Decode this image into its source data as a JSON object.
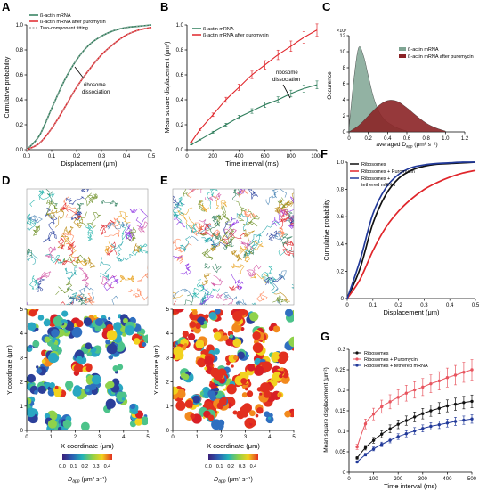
{
  "panels": {
    "A": {
      "letter": "A",
      "ylabel": "Cumulative probability",
      "xlabel": "Displacement (μm)",
      "xticks": [
        "0.0",
        "0.1",
        "0.2",
        "0.3",
        "0.4",
        "0.5"
      ],
      "yticks": [
        "0.0",
        "0.2",
        "0.4",
        "0.6",
        "0.8",
        "1.0"
      ],
      "legend": [
        "ß-actin mRNA",
        "ß-actin mRNA after puromycin",
        "Two-component fitting"
      ],
      "annotation": [
        "ribosome",
        "dissociation"
      ]
    },
    "B": {
      "letter": "B",
      "ylabel": "Mean square displacement (μm²)",
      "xlabel": "Time interval (ms)",
      "xticks": [
        "0",
        "200",
        "400",
        "600",
        "800",
        "1000"
      ],
      "yticks": [
        "0.0",
        "0.2",
        "0.4",
        "0.6",
        "0.8",
        "1.0"
      ],
      "legend": [
        "ß-actin mRNA",
        "ß-actin mRNA after puromycin"
      ],
      "annotation": [
        "ribosome",
        "dissociation"
      ]
    },
    "C": {
      "letter": "C",
      "ylabel": "Occurence",
      "xlabel": "averaged D",
      "xlabel_sub": "app",
      "xlabel_unit": " (μm² s⁻¹)",
      "scale": "×10³",
      "xticks": [
        "0",
        "0.2",
        "0.4",
        "0.6",
        "0.8",
        "1.0",
        "1.2"
      ],
      "yticks": [
        "0",
        "2",
        "4",
        "6",
        "8",
        "10",
        "12"
      ],
      "legend": [
        "ß-actin mRNA",
        "ß-actin mRNA after puromycin"
      ]
    },
    "D": {
      "letter": "D",
      "ylabel": "Y coordinate (μm)",
      "xlabel": "X coordinate (μm)",
      "ticks": [
        "0",
        "1",
        "2",
        "3",
        "4",
        "5"
      ],
      "cbar_ticks": [
        "0.0",
        "0.1",
        "0.2",
        "0.3",
        "0.4"
      ],
      "cbar_label": "D",
      "cbar_sub": "app",
      "cbar_unit": " (μm² s⁻¹)"
    },
    "E": {
      "letter": "E",
      "ylabel": "Y coordinate (μm)",
      "xlabel": "X coordinate (μm)",
      "ticks": [
        "0",
        "1",
        "2",
        "3",
        "4",
        "5"
      ],
      "cbar_ticks": [
        "0.0",
        "0.1",
        "0.2",
        "0.3",
        "0.4"
      ],
      "cbar_label": "D",
      "cbar_sub": "app",
      "cbar_unit": " (μm² s⁻¹)"
    },
    "F": {
      "letter": "F",
      "ylabel": "Cumulative probability",
      "xlabel": "Displacement (μm)",
      "xticks": [
        "0",
        "0.1",
        "0.2",
        "0.3",
        "0.4",
        "0.5"
      ],
      "yticks": [
        "0",
        "0.2",
        "0.4",
        "0.6",
        "0.8",
        "1.0"
      ],
      "legend": [
        "Ribosomes",
        "Ribosomes + Puromycin",
        "Ribosomes +",
        "tethered mRNA"
      ]
    },
    "G": {
      "letter": "G",
      "ylabel": "Mean square displacement (μm²)",
      "xlabel": "Time interval (ms)",
      "xticks": [
        "0",
        "100",
        "200",
        "300",
        "400",
        "500"
      ],
      "yticks": [
        "0",
        "0.05",
        "0.1",
        "0.15",
        "0.2",
        "0.25",
        "0.3"
      ],
      "legend": [
        "Ribosomes",
        "Ribosomes + Puromycin",
        "Ribosomes + tethered mRNA"
      ]
    }
  },
  "colors": {
    "green": "#2e7d5b",
    "red": "#e0262b",
    "black": "#111111",
    "blue": "#223a9a",
    "pink": "#e8555f",
    "hist_green": "#7fa593",
    "hist_red": "#8b2326"
  },
  "chart_data": [
    {
      "id": "A",
      "type": "line",
      "xlim": [
        0,
        0.5
      ],
      "ylim": [
        0,
        1
      ],
      "series": [
        {
          "name": "ß-actin mRNA",
          "x": [
            0,
            0.05,
            0.1,
            0.15,
            0.2,
            0.25,
            0.3,
            0.35,
            0.4,
            0.45,
            0.5
          ],
          "values": [
            0,
            0.11,
            0.33,
            0.55,
            0.72,
            0.84,
            0.91,
            0.955,
            0.98,
            0.99,
            1.0
          ]
        },
        {
          "name": "ß-actin mRNA after puromycin",
          "x": [
            0,
            0.05,
            0.1,
            0.15,
            0.2,
            0.25,
            0.3,
            0.35,
            0.4,
            0.45,
            0.5
          ],
          "values": [
            0,
            0.05,
            0.17,
            0.33,
            0.5,
            0.64,
            0.76,
            0.85,
            0.92,
            0.96,
            0.98
          ]
        }
      ]
    },
    {
      "id": "B",
      "type": "line",
      "xlim": [
        0,
        1000
      ],
      "ylim": [
        0,
        1
      ],
      "series": [
        {
          "name": "ß-actin mRNA",
          "x": [
            33,
            100,
            200,
            300,
            400,
            500,
            600,
            700,
            800,
            900,
            1000
          ],
          "values": [
            0.04,
            0.08,
            0.14,
            0.2,
            0.26,
            0.31,
            0.36,
            0.4,
            0.45,
            0.49,
            0.52
          ]
        },
        {
          "name": "ß-actin mRNA after puromycin",
          "x": [
            33,
            100,
            200,
            300,
            400,
            500,
            600,
            700,
            800,
            900,
            1000
          ],
          "values": [
            0.06,
            0.16,
            0.28,
            0.4,
            0.5,
            0.6,
            0.68,
            0.76,
            0.83,
            0.9,
            0.96
          ]
        }
      ]
    },
    {
      "id": "C",
      "type": "area",
      "xlim": [
        0,
        1.2
      ],
      "ylim": [
        0,
        12
      ],
      "series": [
        {
          "name": "ß-actin mRNA",
          "x": [
            0,
            0.05,
            0.1,
            0.15,
            0.2,
            0.25,
            0.3,
            0.35,
            0.4,
            0.5,
            0.6
          ],
          "values": [
            0.5,
            6.5,
            10.5,
            9.5,
            7,
            4.5,
            2.8,
            1.8,
            1.2,
            0.5,
            0.1
          ]
        },
        {
          "name": "ß-actin mRNA after puromycin",
          "x": [
            0,
            0.1,
            0.2,
            0.3,
            0.4,
            0.5,
            0.6,
            0.7,
            0.8,
            0.9,
            1.0
          ],
          "values": [
            0,
            0.8,
            2,
            3.2,
            3.9,
            3.8,
            3,
            2,
            1.1,
            0.5,
            0.1
          ]
        }
      ]
    },
    {
      "id": "F",
      "type": "line",
      "xlim": [
        0,
        0.5
      ],
      "ylim": [
        0,
        1
      ],
      "series": [
        {
          "name": "Ribosomes",
          "x": [
            0,
            0.05,
            0.1,
            0.15,
            0.2,
            0.25,
            0.3,
            0.35,
            0.4,
            0.45,
            0.5
          ],
          "values": [
            0,
            0.22,
            0.55,
            0.76,
            0.88,
            0.94,
            0.97,
            0.985,
            0.99,
            0.995,
            1.0
          ]
        },
        {
          "name": "Ribosomes + Puromycin",
          "x": [
            0,
            0.05,
            0.1,
            0.15,
            0.2,
            0.25,
            0.3,
            0.35,
            0.4,
            0.45,
            0.5
          ],
          "values": [
            0,
            0.14,
            0.35,
            0.52,
            0.64,
            0.73,
            0.8,
            0.85,
            0.89,
            0.92,
            0.94
          ]
        },
        {
          "name": "Ribosomes + tethered mRNA",
          "x": [
            0,
            0.05,
            0.1,
            0.15,
            0.2,
            0.25,
            0.3,
            0.35,
            0.4,
            0.45,
            0.5
          ],
          "values": [
            0,
            0.28,
            0.62,
            0.81,
            0.91,
            0.96,
            0.98,
            0.99,
            0.995,
            1.0,
            1.0
          ]
        }
      ]
    },
    {
      "id": "G",
      "type": "line",
      "xlim": [
        0,
        500
      ],
      "ylim": [
        0,
        0.3
      ],
      "series": [
        {
          "name": "Ribosomes",
          "x": [
            33,
            67,
            100,
            133,
            167,
            200,
            233,
            267,
            300,
            333,
            367,
            400,
            433,
            467,
            500
          ],
          "values": [
            0.035,
            0.06,
            0.078,
            0.093,
            0.106,
            0.117,
            0.126,
            0.135,
            0.143,
            0.15,
            0.156,
            0.162,
            0.166,
            0.17,
            0.173
          ]
        },
        {
          "name": "Ribosomes + Puromycin",
          "x": [
            33,
            67,
            100,
            133,
            167,
            200,
            233,
            267,
            300,
            333,
            367,
            400,
            433,
            467,
            500
          ],
          "values": [
            0.062,
            0.118,
            0.142,
            0.16,
            0.172,
            0.183,
            0.193,
            0.201,
            0.208,
            0.216,
            0.223,
            0.231,
            0.237,
            0.244,
            0.25
          ]
        },
        {
          "name": "Ribosomes + tethered mRNA",
          "x": [
            33,
            67,
            100,
            133,
            167,
            200,
            233,
            267,
            300,
            333,
            367,
            400,
            433,
            467,
            500
          ],
          "values": [
            0.025,
            0.043,
            0.057,
            0.068,
            0.078,
            0.087,
            0.094,
            0.101,
            0.107,
            0.112,
            0.116,
            0.12,
            0.124,
            0.127,
            0.13
          ]
        }
      ]
    }
  ]
}
